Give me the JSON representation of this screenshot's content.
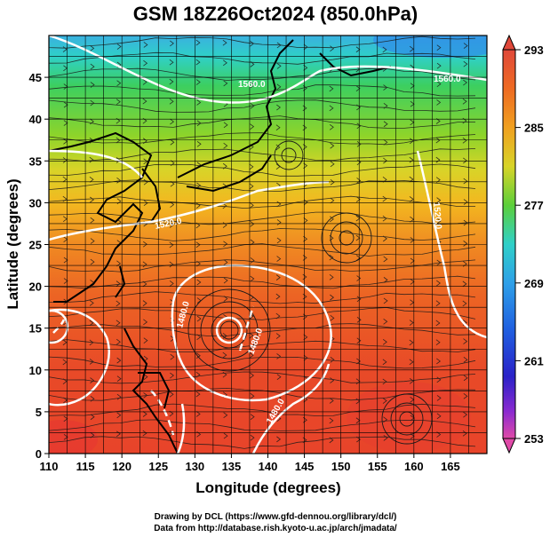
{
  "title": "GSM 18Z26Oct2024 (850.0hPa)",
  "xlabel": "Longitude (degrees)",
  "ylabel": "Latitude  (degrees)",
  "credits": {
    "line1": "Drawing by DCL (https://www.gfd-dennou.org/library/dcl/)",
    "line2": "Data from http://database.rish.kyoto-u.ac.jp/arch/jmadata/"
  },
  "map": {
    "lon_range": [
      110,
      170
    ],
    "lat_range": [
      0,
      50
    ],
    "lon_ticks": [
      "110",
      "115",
      "120",
      "125",
      "130",
      "135",
      "140",
      "145",
      "150",
      "155",
      "160",
      "165"
    ],
    "lat_ticks": [
      "0",
      "5",
      "10",
      "15",
      "20",
      "25",
      "30",
      "35",
      "40",
      "45"
    ],
    "contour_labels": [
      "1560.0",
      "1520.0",
      "1480.0",
      "1480.0",
      "1480.0",
      "1520.0",
      "1560.0"
    ]
  },
  "colorbar": {
    "min": 253,
    "max": 293,
    "tick_labels": [
      "293",
      "285",
      "277",
      "269",
      "261",
      "253"
    ],
    "colors": [
      "#d64aa0",
      "#7a2bd0",
      "#1f22c8",
      "#1f5fe0",
      "#2ea8e8",
      "#2fd0c8",
      "#35cc5a",
      "#7ed22a",
      "#c8d82a",
      "#f0c020",
      "#f09020",
      "#ee6a22",
      "#e8442a",
      "#e0483a"
    ]
  }
}
